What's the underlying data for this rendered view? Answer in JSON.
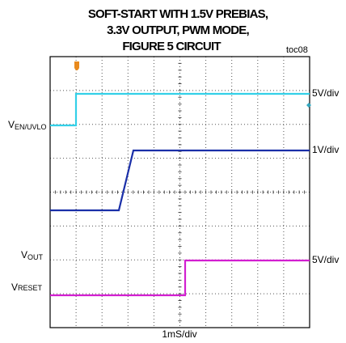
{
  "header": {
    "title_lines": [
      "SOFT-START WITH 1.5V PREBIAS,",
      "3.3V OUTPUT, PWM MODE,",
      "FIGURE 5 CIRCUIT"
    ],
    "figure_id": "toc08"
  },
  "channels": [
    {
      "label": {
        "main": "V",
        "sub": "EN/UVLO"
      },
      "scale": "5V/div"
    },
    {
      "scale": "1V/div"
    },
    {
      "label": {
        "main": "V",
        "sub": "OUT"
      }
    },
    {
      "label": {
        "main": "V",
        "sub": "RESET"
      },
      "scale": "5V/div"
    }
  ],
  "time_scale": "1mS/div"
}
